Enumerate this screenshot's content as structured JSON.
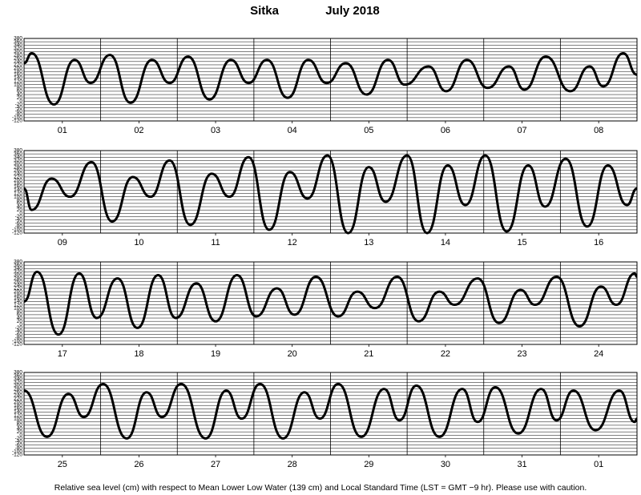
{
  "title": "Sitka",
  "month": "July  2018",
  "footnote": "Relative sea level (cm) with respect to Mean Lower Low Water (139 cm) and Local Standard Time (LST = GMT −9 hr). Please use with caution.",
  "chart_data": [
    {
      "type": "line",
      "color": "#000000",
      "xlim": [
        0,
        8
      ],
      "ylim": [
        -120,
        380
      ],
      "yticks": [
        -120,
        -100,
        -80,
        -60,
        -40,
        -20,
        0,
        20,
        40,
        60,
        80,
        100,
        120,
        140,
        160,
        180,
        200,
        220,
        240,
        260,
        280,
        300,
        320,
        340,
        360,
        380
      ],
      "categories": [
        "01",
        "02",
        "03",
        "04",
        "05",
        "06",
        "07",
        "08"
      ],
      "x": [
        0,
        0.1,
        0.39,
        0.66,
        0.87,
        1.12,
        1.39,
        1.67,
        1.9,
        2.14,
        2.42,
        2.7,
        2.93,
        3.17,
        3.44,
        3.71,
        3.95,
        4.2,
        4.47,
        4.75,
        4.97,
        5.28,
        5.51,
        5.78,
        6.05,
        6.33,
        6.53,
        6.81,
        7.13,
        7.38,
        7.56,
        7.82,
        8
      ],
      "values": [
        230,
        290,
        -20,
        250,
        110,
        280,
        -10,
        250,
        110,
        270,
        10,
        250,
        110,
        250,
        20,
        250,
        110,
        230,
        40,
        250,
        100,
        210,
        60,
        250,
        80,
        210,
        70,
        270,
        60,
        210,
        90,
        290,
        160
      ]
    },
    {
      "type": "line",
      "color": "#000000",
      "xlim": [
        0,
        8
      ],
      "ylim": [
        -120,
        380
      ],
      "yticks": [
        -120,
        -100,
        -80,
        -60,
        -40,
        -20,
        0,
        20,
        40,
        60,
        80,
        100,
        120,
        140,
        160,
        180,
        200,
        220,
        240,
        260,
        280,
        300,
        320,
        340,
        360,
        380
      ],
      "categories": [
        "09",
        "10",
        "11",
        "12",
        "13",
        "14",
        "15",
        "16"
      ],
      "x": [
        0,
        0.1,
        0.36,
        0.6,
        0.88,
        1.15,
        1.42,
        1.65,
        1.9,
        2.17,
        2.45,
        2.68,
        2.93,
        3.2,
        3.47,
        3.7,
        3.96,
        4.23,
        4.5,
        4.72,
        5.0,
        5.26,
        5.53,
        5.76,
        6.02,
        6.3,
        6.58,
        6.8,
        7.07,
        7.35,
        7.62,
        7.87,
        8
      ],
      "values": [
        150,
        20,
        210,
        100,
        310,
        -50,
        220,
        100,
        320,
        -70,
        240,
        100,
        340,
        -100,
        250,
        90,
        350,
        -120,
        280,
        70,
        350,
        -120,
        290,
        50,
        350,
        -110,
        290,
        40,
        330,
        -80,
        290,
        50,
        150
      ]
    },
    {
      "type": "line",
      "color": "#000000",
      "xlim": [
        0,
        8
      ],
      "ylim": [
        -120,
        380
      ],
      "yticks": [
        -120,
        -100,
        -80,
        -60,
        -40,
        -20,
        0,
        20,
        40,
        60,
        80,
        100,
        120,
        140,
        160,
        180,
        200,
        220,
        240,
        260,
        280,
        300,
        320,
        340,
        360,
        380
      ],
      "categories": [
        "17",
        "18",
        "19",
        "20",
        "21",
        "22",
        "23",
        "24"
      ],
      "x": [
        0,
        0.17,
        0.45,
        0.72,
        0.95,
        1.22,
        1.48,
        1.75,
        1.98,
        2.25,
        2.5,
        2.78,
        3.03,
        3.3,
        3.53,
        3.81,
        4.1,
        4.35,
        4.58,
        4.87,
        5.15,
        5.42,
        5.62,
        5.92,
        6.2,
        6.48,
        6.67,
        6.95,
        7.25,
        7.53,
        7.73,
        7.97,
        8
      ],
      "values": [
        140,
        320,
        -60,
        310,
        40,
        280,
        -20,
        300,
        40,
        250,
        20,
        300,
        50,
        220,
        60,
        290,
        50,
        200,
        100,
        290,
        20,
        200,
        120,
        280,
        10,
        210,
        120,
        290,
        -10,
        230,
        120,
        310,
        290
      ]
    },
    {
      "type": "line",
      "color": "#000000",
      "xlim": [
        0,
        8
      ],
      "ylim": [
        -120,
        380
      ],
      "yticks": [
        -120,
        -100,
        -80,
        -60,
        -40,
        -20,
        0,
        20,
        40,
        60,
        80,
        100,
        120,
        140,
        160,
        180,
        200,
        220,
        240,
        260,
        280,
        300,
        320,
        340,
        360,
        380
      ],
      "categories": [
        "25",
        "26",
        "27",
        "28",
        "29",
        "30",
        "31",
        "01"
      ],
      "x": [
        0,
        0.3,
        0.58,
        0.78,
        1.03,
        1.34,
        1.6,
        1.8,
        2.05,
        2.37,
        2.64,
        2.84,
        3.08,
        3.38,
        3.66,
        3.86,
        4.1,
        4.4,
        4.7,
        4.9,
        5.12,
        5.42,
        5.72,
        5.92,
        6.15,
        6.45,
        6.75,
        6.95,
        7.17,
        7.46,
        7.77,
        7.97,
        8
      ],
      "values": [
        270,
        -10,
        250,
        110,
        310,
        -20,
        260,
        110,
        310,
        -20,
        270,
        100,
        310,
        -20,
        260,
        100,
        310,
        -10,
        280,
        90,
        300,
        -10,
        280,
        80,
        290,
        10,
        280,
        90,
        270,
        30,
        270,
        80,
        100
      ]
    }
  ]
}
